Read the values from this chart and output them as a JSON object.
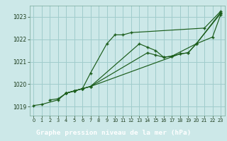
{
  "title": "Graphe pression niveau de la mer (hPa)",
  "background_color": "#cce8e8",
  "plot_bg_color": "#cce8e8",
  "label_bg_color": "#3a7a5a",
  "line_color": "#1a5c1a",
  "grid_color": "#a0cccc",
  "xlim": [
    -0.5,
    23.5
  ],
  "ylim": [
    1018.6,
    1023.5
  ],
  "yticks": [
    1019,
    1020,
    1021,
    1022,
    1023
  ],
  "xticks": [
    0,
    1,
    2,
    3,
    4,
    5,
    6,
    7,
    8,
    9,
    10,
    11,
    12,
    13,
    14,
    15,
    16,
    17,
    18,
    19,
    20,
    21,
    22,
    23
  ],
  "series_full": [
    {
      "x": [
        0,
        1,
        3,
        4,
        5,
        6,
        7,
        9,
        10,
        11,
        12,
        21,
        23
      ],
      "y": [
        1019.05,
        1019.1,
        1019.3,
        1019.6,
        1019.7,
        1019.8,
        1020.5,
        1021.8,
        1022.2,
        1022.2,
        1022.3,
        1022.5,
        1023.25
      ]
    },
    {
      "x": [
        2,
        3,
        4,
        5,
        6,
        7,
        13,
        14,
        15,
        16,
        17,
        20,
        23
      ],
      "y": [
        1019.3,
        1019.35,
        1019.6,
        1019.7,
        1019.8,
        1019.9,
        1021.8,
        1021.65,
        1021.5,
        1021.2,
        1021.25,
        1021.8,
        1023.2
      ]
    },
    {
      "x": [
        4,
        5,
        6,
        7,
        14,
        15,
        16,
        17,
        18,
        19,
        20,
        23
      ],
      "y": [
        1019.6,
        1019.7,
        1019.8,
        1019.9,
        1021.4,
        1021.3,
        1021.2,
        1021.25,
        1021.35,
        1021.4,
        1021.8,
        1023.15
      ]
    },
    {
      "x": [
        4,
        5,
        6,
        7,
        18,
        19,
        20,
        22,
        23
      ],
      "y": [
        1019.6,
        1019.7,
        1019.8,
        1019.9,
        1021.35,
        1021.4,
        1021.8,
        1022.1,
        1023.1
      ]
    }
  ]
}
